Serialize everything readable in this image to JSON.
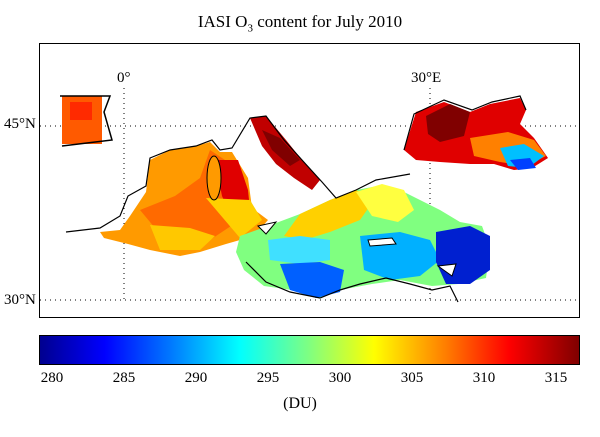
{
  "title_text": "IASI O",
  "title_sub": "3",
  "title_rest": " content for July 2010",
  "lon_labels": [
    "0°",
    "30°E"
  ],
  "lat_labels": [
    "45°N",
    "30°N"
  ],
  "colorbar": {
    "ticks": [
      "280",
      "285",
      "290",
      "295",
      "300",
      "305",
      "310",
      "315"
    ],
    "unit": "(DU)",
    "colors": [
      "#00008f",
      "#0000ff",
      "#0080ff",
      "#00ffff",
      "#80ff80",
      "#ffff00",
      "#ff8000",
      "#ff0000",
      "#800000"
    ]
  }
}
